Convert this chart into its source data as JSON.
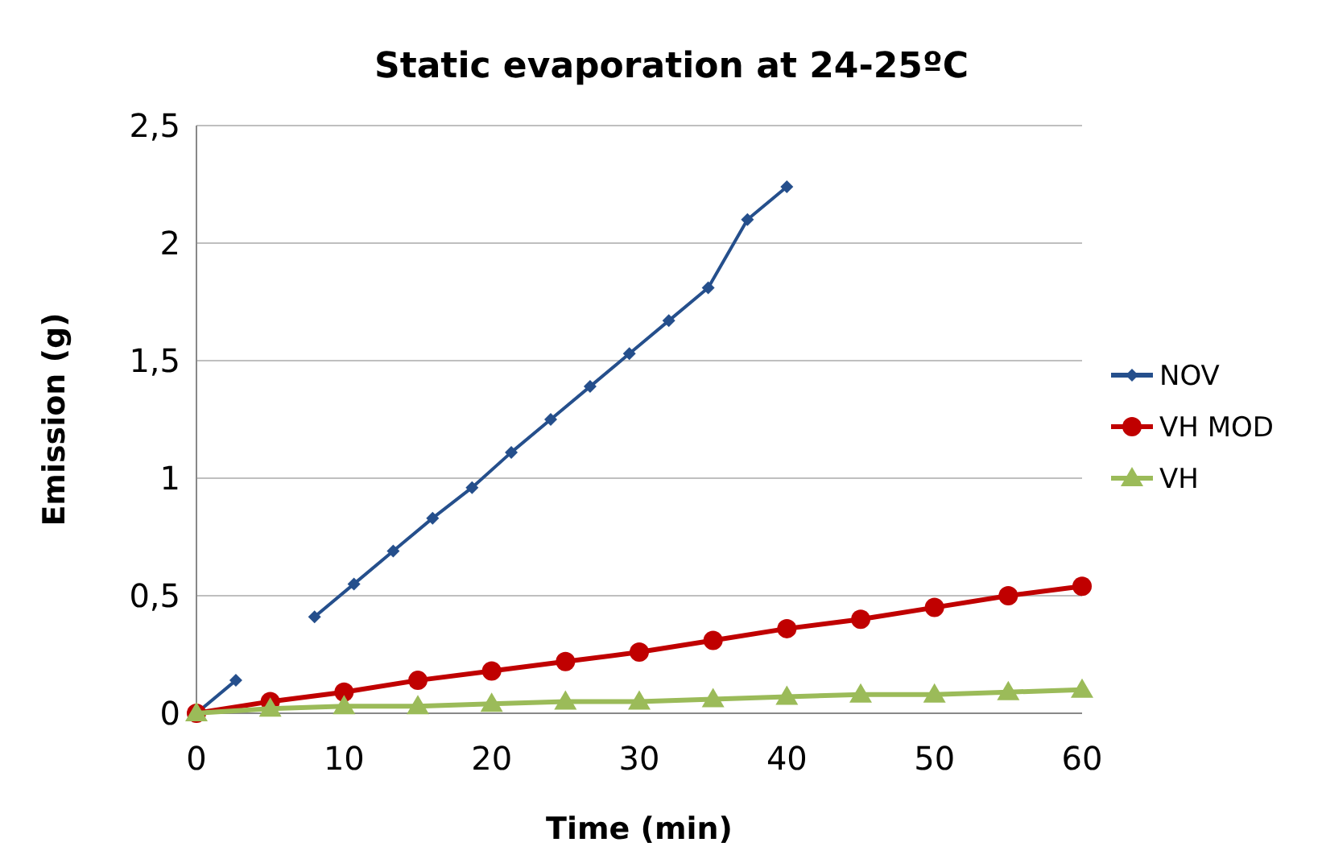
{
  "chart_data": {
    "type": "line",
    "title": "Static evaporation at 24-25ºC",
    "xlabel": "Time (min)",
    "ylabel": "Emission (g)",
    "series": [
      {
        "name": "NOV",
        "color": "#254f8c",
        "marker": "diamond",
        "x": [
          0,
          2.67,
          5.33,
          8,
          10.67,
          13.33,
          16,
          18.67,
          21.33,
          24,
          26.67,
          29.33,
          32,
          34.67,
          37.33,
          40
        ],
        "values": [
          0,
          0.14,
          null,
          0.41,
          0.55,
          0.69,
          0.83,
          0.96,
          1.11,
          1.25,
          1.39,
          1.53,
          1.67,
          1.81,
          2.1,
          2.24
        ]
      },
      {
        "name": "VH MOD",
        "color": "#c00000",
        "marker": "circle",
        "x": [
          0,
          5,
          10,
          15,
          20,
          25,
          30,
          35,
          40,
          45,
          50,
          55,
          60
        ],
        "values": [
          0,
          0.05,
          0.09,
          0.14,
          0.18,
          0.22,
          0.26,
          0.31,
          0.36,
          0.4,
          0.45,
          0.5,
          0.54
        ]
      },
      {
        "name": "VH",
        "color": "#9bbb59",
        "marker": "triangle",
        "x": [
          0,
          5,
          10,
          15,
          20,
          25,
          30,
          35,
          40,
          45,
          50,
          55,
          60
        ],
        "values": [
          0,
          0.02,
          0.03,
          0.03,
          0.04,
          0.05,
          0.05,
          0.06,
          0.07,
          0.08,
          0.08,
          0.09,
          0.1
        ]
      }
    ],
    "xlim": [
      0,
      60
    ],
    "xticks": [
      0,
      10,
      20,
      30,
      40,
      50,
      60
    ],
    "ylim": [
      0,
      2.5
    ],
    "yticks": [
      0,
      {
        "value": 0.5,
        "label": "0,5"
      },
      1,
      {
        "value": 1.5,
        "label": "1,5"
      },
      2,
      {
        "value": 2.5,
        "label": "2,5"
      }
    ],
    "grid": "y",
    "legend": "right"
  }
}
